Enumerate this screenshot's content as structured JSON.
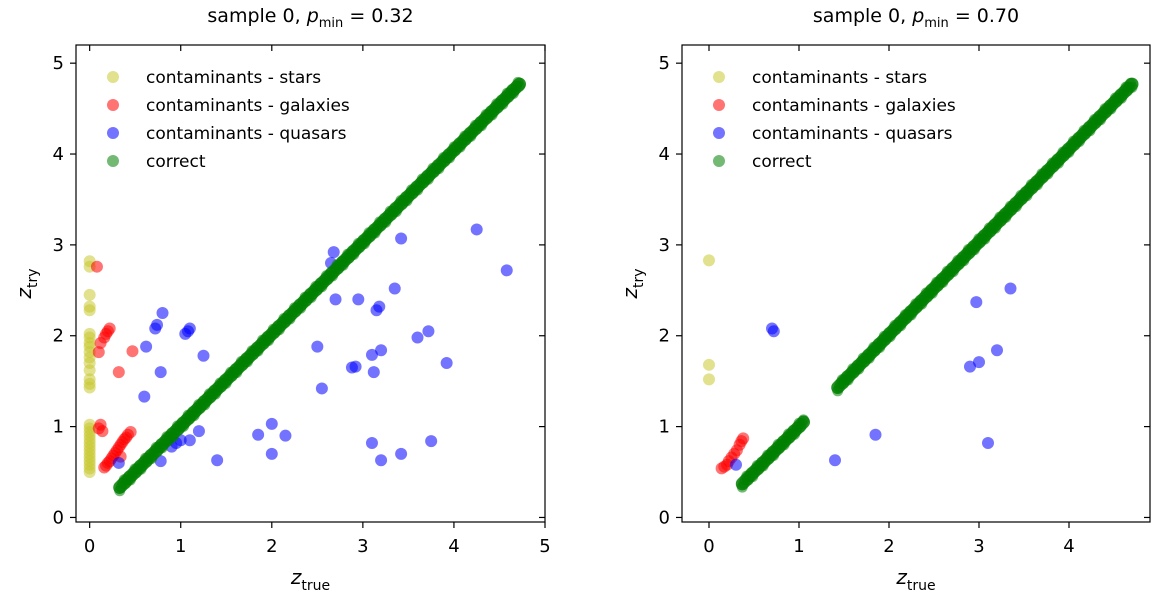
{
  "chart_data": [
    {
      "type": "scatter",
      "title": "sample 0, p_min = 0.32",
      "title_parts": {
        "prefix": "sample 0, ",
        "symbol": "p",
        "subscript": "min",
        "value": " = 0.32"
      },
      "xlabel": {
        "symbol": "z",
        "subscript": "true"
      },
      "ylabel": {
        "symbol": "z",
        "subscript": "try"
      },
      "xlim": [
        -0.15,
        5.0
      ],
      "ylim": [
        -0.05,
        5.2
      ],
      "xticks": [
        "0",
        "1",
        "2",
        "3",
        "4",
        "5"
      ],
      "yticks": [
        "0",
        "1",
        "2",
        "3",
        "4",
        "5"
      ],
      "legend_position": "upper-left",
      "grid": false,
      "series": [
        {
          "name": "contaminants - stars",
          "color": "#c8c832",
          "points": [
            [
              0,
              2.82
            ],
            [
              0,
              2.76
            ],
            [
              0,
              2.45
            ],
            [
              0,
              2.32
            ],
            [
              0,
              2.28
            ],
            [
              0,
              2.02
            ],
            [
              0,
              1.98
            ],
            [
              0,
              1.92
            ],
            [
              0,
              1.88
            ],
            [
              0,
              1.82
            ],
            [
              0,
              1.76
            ],
            [
              0,
              1.7
            ],
            [
              0,
              1.62
            ],
            [
              0,
              1.52
            ],
            [
              0,
              1.47
            ],
            [
              0,
              1.43
            ],
            [
              0,
              1.02
            ],
            [
              0,
              0.98
            ],
            [
              0,
              0.94
            ],
            [
              0,
              0.9
            ],
            [
              0,
              0.86
            ],
            [
              0,
              0.82
            ],
            [
              0,
              0.78
            ],
            [
              0,
              0.74
            ],
            [
              0,
              0.7
            ],
            [
              0,
              0.66
            ],
            [
              0,
              0.62
            ],
            [
              0,
              0.58
            ],
            [
              0,
              0.54
            ],
            [
              0,
              0.5
            ]
          ]
        },
        {
          "name": "contaminants - galaxies",
          "color": "#ff0000",
          "points": [
            [
              0.08,
              2.76
            ],
            [
              0.22,
              2.08
            ],
            [
              0.2,
              2.05
            ],
            [
              0.18,
              2.02
            ],
            [
              0.16,
              1.98
            ],
            [
              0.12,
              1.92
            ],
            [
              0.1,
              1.82
            ],
            [
              0.32,
              1.6
            ],
            [
              0.47,
              1.83
            ],
            [
              0.12,
              1.02
            ],
            [
              0.1,
              0.98
            ],
            [
              0.14,
              0.95
            ],
            [
              0.45,
              0.94
            ],
            [
              0.42,
              0.91
            ],
            [
              0.4,
              0.88
            ],
            [
              0.38,
              0.86
            ],
            [
              0.36,
              0.83
            ],
            [
              0.34,
              0.8
            ],
            [
              0.32,
              0.77
            ],
            [
              0.3,
              0.74
            ],
            [
              0.28,
              0.71
            ],
            [
              0.26,
              0.68
            ],
            [
              0.24,
              0.65
            ],
            [
              0.22,
              0.62
            ],
            [
              0.2,
              0.6
            ],
            [
              0.18,
              0.57
            ],
            [
              0.16,
              0.55
            ],
            [
              0.34,
              0.67
            ]
          ]
        },
        {
          "name": "contaminants - quasars",
          "color": "#0000ff",
          "points": [
            [
              0.62,
              1.88
            ],
            [
              0.72,
              2.08
            ],
            [
              0.74,
              2.12
            ],
            [
              0.8,
              2.25
            ],
            [
              0.6,
              1.33
            ],
            [
              0.78,
              1.6
            ],
            [
              1.05,
              2.02
            ],
            [
              1.08,
              2.05
            ],
            [
              1.1,
              2.08
            ],
            [
              1.25,
              1.78
            ],
            [
              0.9,
              0.78
            ],
            [
              0.95,
              0.82
            ],
            [
              1.0,
              0.85
            ],
            [
              1.1,
              0.85
            ],
            [
              1.2,
              0.95
            ],
            [
              1.4,
              0.63
            ],
            [
              0.78,
              0.62
            ],
            [
              0.32,
              0.6
            ],
            [
              1.85,
              0.91
            ],
            [
              2.0,
              1.03
            ],
            [
              2.15,
              0.9
            ],
            [
              2.0,
              0.7
            ],
            [
              2.5,
              1.88
            ],
            [
              2.55,
              1.42
            ],
            [
              2.65,
              2.8
            ],
            [
              2.68,
              2.92
            ],
            [
              2.7,
              2.4
            ],
            [
              2.88,
              1.65
            ],
            [
              2.92,
              1.66
            ],
            [
              2.95,
              2.4
            ],
            [
              3.1,
              1.79
            ],
            [
              3.12,
              1.6
            ],
            [
              3.15,
              2.28
            ],
            [
              3.18,
              2.32
            ],
            [
              3.2,
              1.84
            ],
            [
              3.35,
              2.52
            ],
            [
              3.42,
              3.07
            ],
            [
              3.1,
              0.82
            ],
            [
              3.2,
              0.63
            ],
            [
              3.42,
              0.7
            ],
            [
              3.6,
              1.98
            ],
            [
              3.72,
              2.05
            ],
            [
              3.75,
              0.84
            ],
            [
              3.92,
              1.7
            ],
            [
              4.25,
              3.17
            ],
            [
              4.58,
              2.72
            ]
          ]
        },
        {
          "name": "correct",
          "color": "#008000",
          "segments": [
            [
              0.33,
              0.33,
              4.72,
              4.77
            ]
          ]
        }
      ]
    },
    {
      "type": "scatter",
      "title": "sample 0, p_min = 0.70",
      "title_parts": {
        "prefix": "sample 0, ",
        "symbol": "p",
        "subscript": "min",
        "value": " = 0.70"
      },
      "xlabel": {
        "symbol": "z",
        "subscript": "true"
      },
      "ylabel": {
        "symbol": "z",
        "subscript": "try"
      },
      "xlim": [
        -0.3,
        4.9
      ],
      "ylim": [
        -0.05,
        5.2
      ],
      "xticks": [
        "0",
        "1",
        "2",
        "3",
        "4"
      ],
      "yticks": [
        "0",
        "1",
        "2",
        "3",
        "4",
        "5"
      ],
      "legend_position": "upper-left",
      "grid": false,
      "series": [
        {
          "name": "contaminants - stars",
          "color": "#c8c832",
          "points": [
            [
              0,
              2.83
            ],
            [
              0,
              1.68
            ],
            [
              0,
              1.52
            ]
          ]
        },
        {
          "name": "contaminants - galaxies",
          "color": "#ff0000",
          "points": [
            [
              0.14,
              0.54
            ],
            [
              0.17,
              0.56
            ],
            [
              0.2,
              0.58
            ],
            [
              0.22,
              0.62
            ],
            [
              0.25,
              0.66
            ],
            [
              0.28,
              0.7
            ],
            [
              0.31,
              0.74
            ],
            [
              0.34,
              0.8
            ],
            [
              0.36,
              0.84
            ],
            [
              0.38,
              0.87
            ]
          ]
        },
        {
          "name": "contaminants - quasars",
          "color": "#0000ff",
          "points": [
            [
              0.7,
              2.08
            ],
            [
              0.72,
              2.05
            ],
            [
              0.3,
              0.58
            ],
            [
              1.4,
              0.63
            ],
            [
              1.85,
              0.91
            ],
            [
              2.9,
              1.66
            ],
            [
              3.0,
              1.71
            ],
            [
              3.2,
              1.84
            ],
            [
              3.1,
              0.82
            ],
            [
              2.97,
              2.37
            ],
            [
              3.35,
              2.52
            ]
          ]
        },
        {
          "name": "correct",
          "color": "#008000",
          "segments": [
            [
              0.37,
              0.37,
              1.05,
              1.05
            ],
            [
              1.43,
              1.43,
              4.7,
              4.77
            ]
          ]
        }
      ]
    }
  ]
}
